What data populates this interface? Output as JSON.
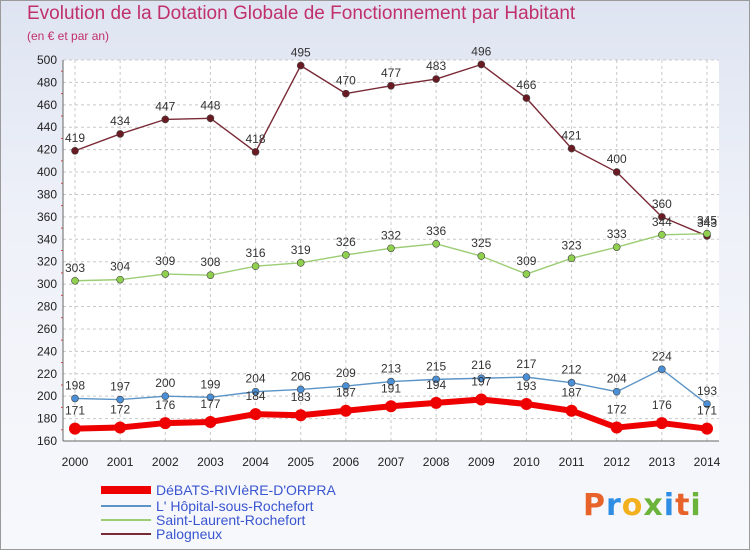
{
  "header": {
    "title": "Evolution de la Dotation Globale de Fonctionnement par Habitant",
    "subtitle": "(en € et par an)"
  },
  "logo": {
    "text": "Proxiti",
    "colors": [
      "#e8632a",
      "#2f8de4",
      "#f2b01e",
      "#6bb33a",
      "#2f8de4",
      "#e8632a",
      "#6bb33a"
    ]
  },
  "chart_data": {
    "type": "line",
    "title": "Evolution de la Dotation Globale de Fonctionnement par Habitant",
    "subtitle": "(en € et par an)",
    "x": [
      2000,
      2001,
      2002,
      2003,
      2004,
      2005,
      2006,
      2007,
      2008,
      2009,
      2010,
      2011,
      2012,
      2013,
      2014
    ],
    "ylim": [
      160,
      500
    ],
    "yticks": [
      160,
      180,
      200,
      220,
      240,
      260,
      280,
      300,
      320,
      340,
      360,
      380,
      400,
      420,
      440,
      460,
      480,
      500
    ],
    "grid": true,
    "legend_position": "bottom-left",
    "series": [
      {
        "name": "DéBATS-RIVIèRE-D'ORPRA",
        "color": "#ee0000",
        "dot": "#ee0000",
        "width": 6,
        "r": 6,
        "values": [
          171,
          172,
          176,
          177,
          184,
          183,
          187,
          191,
          194,
          197,
          193,
          187,
          172,
          176,
          171
        ]
      },
      {
        "name": "L' Hôpital-sous-Rochefort",
        "color": "#5b94c7",
        "dot": "#4b8fd6",
        "width": 1.4,
        "r": 3.5,
        "values": [
          198,
          197,
          200,
          199,
          204,
          206,
          209,
          213,
          215,
          216,
          217,
          212,
          204,
          224,
          193
        ]
      },
      {
        "name": "Saint-Laurent-Rochefort",
        "color": "#9ccd74",
        "dot": "#8fd04f",
        "width": 1.4,
        "r": 3.5,
        "values": [
          303,
          304,
          309,
          308,
          316,
          319,
          326,
          332,
          336,
          325,
          309,
          323,
          333,
          344,
          345
        ]
      },
      {
        "name": "Palogneux",
        "color": "#7a2a36",
        "dot": "#6a1a22",
        "width": 1.4,
        "r": 3.5,
        "values": [
          419,
          434,
          447,
          448,
          418,
          495,
          470,
          477,
          483,
          496,
          466,
          421,
          400,
          360,
          343
        ]
      }
    ]
  }
}
